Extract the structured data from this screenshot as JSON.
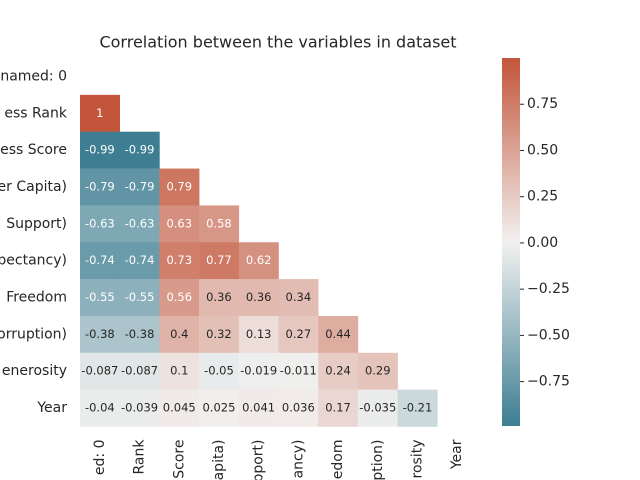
{
  "chart_data": {
    "type": "heatmap",
    "title": "Correlation between the variables in dataset",
    "rows": [
      "named: 0",
      "ess Rank",
      "ess Score",
      "er Capita)",
      "Support)",
      "pectancy)",
      "Freedom",
      "orruption)",
      "enerosity",
      "Year"
    ],
    "columns": [
      "ed: 0",
      "Rank",
      "Score",
      "apita)",
      "pport)",
      "ancy)",
      "edom",
      "ption)",
      "rosity",
      "Year"
    ],
    "values": [
      [],
      [
        1
      ],
      [
        -0.99,
        -0.99
      ],
      [
        -0.79,
        -0.79,
        0.79
      ],
      [
        -0.63,
        -0.63,
        0.63,
        0.58
      ],
      [
        -0.74,
        -0.74,
        0.73,
        0.77,
        0.62
      ],
      [
        -0.55,
        -0.55,
        0.56,
        0.36,
        0.36,
        0.34
      ],
      [
        -0.38,
        -0.38,
        0.4,
        0.32,
        0.13,
        0.27,
        0.44
      ],
      [
        -0.087,
        -0.087,
        0.1,
        -0.05,
        -0.019,
        -0.011,
        0.24,
        0.29
      ],
      [
        -0.04,
        -0.039,
        0.045,
        0.025,
        0.041,
        0.036,
        0.17,
        -0.035,
        -0.21
      ]
    ],
    "colormap": [
      "#3d7e92",
      "#f2f1f0",
      "#c3553a"
    ],
    "clim": [
      -0.99,
      1
    ],
    "cticks": [
      {
        "value": -0.75,
        "label": "−0.75"
      },
      {
        "value": -0.5,
        "label": "−0.50"
      },
      {
        "value": -0.25,
        "label": "−0.25"
      },
      {
        "value": 0,
        "label": "0.00"
      },
      0.25,
      {
        "value": 0.5,
        "label": "0.50"
      },
      0.75
    ]
  }
}
